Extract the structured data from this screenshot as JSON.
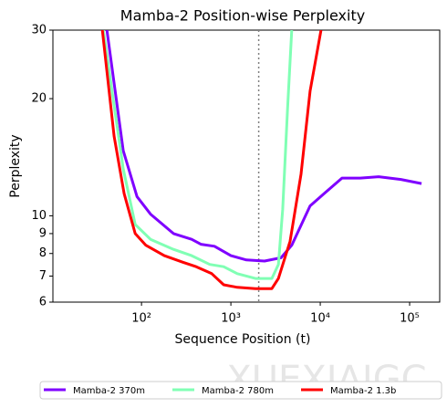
{
  "chart_data": {
    "type": "line",
    "title": "Mamba-2 Position-wise Perplexity",
    "x_label": "Sequence Position (t)",
    "y_label": "Perplexity",
    "xscale": "log",
    "yscale": "log",
    "xlim": [
      10.2,
      217000
    ],
    "ylim": [
      6,
      30
    ],
    "xticks": [
      {
        "value": 100,
        "label": "10²"
      },
      {
        "value": 1000,
        "label": "10³"
      },
      {
        "value": 10000,
        "label": "10⁴"
      },
      {
        "value": 100000,
        "label": "10⁵"
      }
    ],
    "yticks": [
      6,
      7,
      8,
      9,
      10,
      20,
      30
    ],
    "vline": {
      "x": 2048,
      "color": "#808080"
    },
    "legend": "bottom",
    "watermark": "XUEXIAIGC",
    "series": [
      {
        "name": "Mamba-2 370m",
        "color": "#7f00ff",
        "x": [
          41,
          62.5,
          89,
          126,
          228,
          364,
          461,
          655,
          1000,
          1490,
          2380,
          3640,
          4800,
          7700,
          11000,
          17500,
          28000,
          45000,
          80000,
          136000
        ],
        "values": [
          30,
          14.7,
          11.2,
          10.1,
          9.0,
          8.7,
          8.45,
          8.35,
          7.9,
          7.7,
          7.65,
          7.8,
          8.4,
          10.6,
          11.4,
          12.5,
          12.5,
          12.6,
          12.4,
          12.1
        ]
      },
      {
        "name": "Mamba-2 780m",
        "color": "#80ffb4",
        "x": [
          37.3,
          62.5,
          85,
          126,
          228,
          364,
          580,
          830,
          1180,
          1880,
          2870,
          3400,
          3800,
          4300,
          4800
        ],
        "values": [
          30,
          13.2,
          9.5,
          8.7,
          8.2,
          7.9,
          7.5,
          7.4,
          7.1,
          6.9,
          6.9,
          7.5,
          10.4,
          18.8,
          30
        ]
      },
      {
        "name": "Mamba-2 1.3b",
        "color": "#ff0000",
        "x": [
          36.5,
          49.4,
          64,
          85,
          112,
          180,
          288,
          409,
          610,
          830,
          1180,
          1880,
          2870,
          3400,
          4600,
          6100,
          7700,
          10200
        ],
        "values": [
          30,
          16,
          11.4,
          9.0,
          8.4,
          7.9,
          7.6,
          7.4,
          7.1,
          6.65,
          6.55,
          6.5,
          6.5,
          6.9,
          8.6,
          12.8,
          20.9,
          30
        ]
      }
    ]
  }
}
